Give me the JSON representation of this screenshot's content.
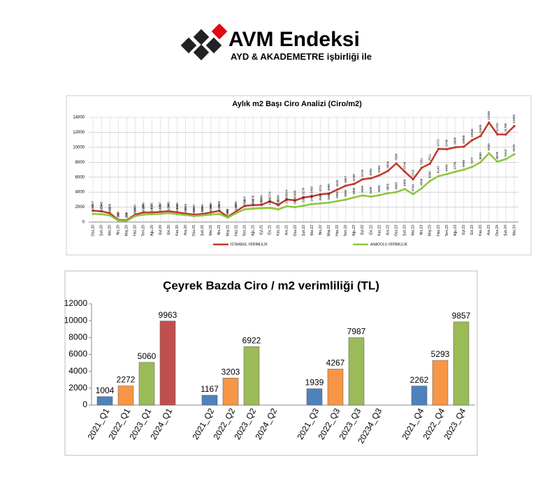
{
  "header": {
    "brand": "AVM Endeksi",
    "tagline": "AYD & AKADEMETRE işbirliği ile"
  },
  "chart_data": [
    {
      "type": "line",
      "title": "Aylık m2 Başı Ciro Analizi (Ciro/m2)",
      "categories": [
        "Oca.20",
        "Şub.20",
        "Mar.20",
        "Nis.20",
        "May.20",
        "Haz.20",
        "Tem.20",
        "Ağu.20",
        "Eyl.20",
        "Eki.20",
        "Kas.20",
        "Ara.20",
        "Oca.21",
        "Şub.21",
        "Mar.21",
        "Nis.21",
        "May.21",
        "Haz.21",
        "Tem.21",
        "Ağu.21",
        "Eyl.21",
        "Eki.21",
        "Kas.21",
        "Ara.21",
        "Oca.22",
        "Şub.22",
        "Mar.22",
        "Nis.22",
        "May.22",
        "Haz.22",
        "Tem.22",
        "Ağu.22",
        "Eyl.22",
        "Eki.22",
        "Kas.22",
        "Ara.22",
        "Oca.23",
        "Şub.23",
        "Mar.23",
        "Nis.23",
        "May.23",
        "Haz.23",
        "Tem.23",
        "Ağu.23",
        "Eyl.23",
        "Eki.23",
        "Kas.23",
        "Ara.23",
        "Oca.24",
        "Şub.24",
        "Mar.24"
      ],
      "series": [
        {
          "name": "İSTANBUL VERİMLİLİK",
          "color": "#c0392b",
          "values": [
            1517,
            1445,
            1185,
            300,
            250,
            1000,
            1300,
            1295,
            1367,
            1461,
            1310,
            1150,
            1000,
            1085,
            1300,
            1500,
            700,
            1450,
            2167,
            2276,
            2300,
            2774,
            2300,
            3024,
            2900,
            3278,
            3450,
            3711,
            3800,
            4342,
            4857,
            5108,
            5719,
            5855,
            6256,
            6834,
            7838,
            6749,
            5715,
            7251,
            7811,
            9772,
            9746,
            9998,
            10065,
            10945,
            11500,
            13300,
            11723,
            11700,
            12828
          ]
        },
        {
          "name": "ANADOLU VERİMLİLİK",
          "color": "#8dc63f",
          "values": [
            1100,
            1050,
            900,
            200,
            150,
            800,
            1000,
            1050,
            1100,
            1200,
            1050,
            950,
            800,
            900,
            1000,
            1100,
            600,
            1200,
            1700,
            1800,
            1850,
            1900,
            1700,
            2100,
            2000,
            2200,
            2400,
            2500,
            2600,
            2800,
            3000,
            3300,
            3559,
            3400,
            3600,
            3855,
            4003,
            4409,
            3740,
            4500,
            5500,
            6143,
            6409,
            6730,
            6996,
            7377,
            8000,
            9200,
            8078,
            8413,
            9070
          ]
        }
      ],
      "ylim": [
        0,
        14000
      ],
      "yticks": [
        0,
        2000,
        4000,
        6000,
        8000,
        10000,
        12000,
        14000
      ],
      "grid": true
    },
    {
      "type": "bar",
      "title": "Çeyrek Bazda Ciro / m2 verimliliği (TL)",
      "categories": [
        "2021_Q1",
        "2022_Q1",
        "2023_Q1",
        "2024_Q1",
        "2021_Q2",
        "2022_Q2",
        "2023_Q2",
        "2024_Q2",
        "2021_Q3",
        "2022_Q3",
        "2023_Q3",
        "20234_Q3",
        "2021_Q4",
        "2022_Q4",
        "2023_Q4"
      ],
      "values": [
        1004,
        2272,
        5060,
        9963,
        1167,
        3203,
        6922,
        null,
        1939,
        4267,
        7987,
        null,
        2262,
        5293,
        9857
      ],
      "colors": [
        "#4f81bd",
        "#f79646",
        "#9bbb59",
        "#c0504d",
        "#4f81bd",
        "#f79646",
        "#9bbb59",
        "#c0504d",
        "#4f81bd",
        "#f79646",
        "#9bbb59",
        "#c0504d",
        "#4f81bd",
        "#f79646",
        "#9bbb59"
      ],
      "ylim": [
        0,
        12000
      ],
      "yticks": [
        0,
        2000,
        4000,
        6000,
        8000,
        10000,
        12000
      ],
      "grid": false
    }
  ]
}
